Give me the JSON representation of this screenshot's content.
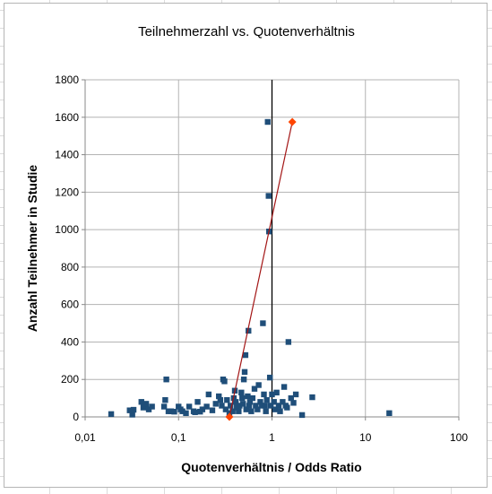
{
  "chart_data": {
    "type": "scatter",
    "title": "Teilnehmerzahl vs. Quotenverhältnis",
    "xlabel": "Quotenverhältnis / Odds Ratio",
    "ylabel": "Anzahl Teilnehmer in Studie",
    "x_scale": "log",
    "xlim": [
      0.01,
      100
    ],
    "ylim": [
      0,
      1800
    ],
    "x_ticks": [
      0.01,
      0.1,
      1,
      10,
      100
    ],
    "x_tick_labels": [
      "0,01",
      "0,1",
      "1",
      "10",
      "100"
    ],
    "y_ticks": [
      0,
      200,
      400,
      600,
      800,
      1000,
      1200,
      1400,
      1600,
      1800
    ],
    "y_tick_labels": [
      "0",
      "200",
      "400",
      "600",
      "800",
      "1000",
      "1200",
      "1400",
      "1600",
      "1800"
    ],
    "reference_line_x": 1,
    "grid": true,
    "colors": {
      "points": "#1f4e79",
      "line": "#a31515",
      "diamond": "#ff4500",
      "reference": "#000000",
      "grid": "#b3b3b3"
    },
    "series": [
      {
        "marker": "square",
        "points": [
          [
            0.019,
            15
          ],
          [
            0.03,
            35
          ],
          [
            0.032,
            12
          ],
          [
            0.033,
            38
          ],
          [
            0.04,
            80
          ],
          [
            0.042,
            50
          ],
          [
            0.045,
            70
          ],
          [
            0.048,
            40
          ],
          [
            0.052,
            55
          ],
          [
            0.07,
            55
          ],
          [
            0.072,
            90
          ],
          [
            0.074,
            200
          ],
          [
            0.078,
            30
          ],
          [
            0.083,
            30
          ],
          [
            0.09,
            28
          ],
          [
            0.1,
            55
          ],
          [
            0.105,
            40
          ],
          [
            0.11,
            30
          ],
          [
            0.12,
            20
          ],
          [
            0.13,
            55
          ],
          [
            0.145,
            30
          ],
          [
            0.15,
            25
          ],
          [
            0.16,
            80
          ],
          [
            0.17,
            28
          ],
          [
            0.18,
            40
          ],
          [
            0.2,
            55
          ],
          [
            0.21,
            120
          ],
          [
            0.23,
            35
          ],
          [
            0.25,
            70
          ],
          [
            0.27,
            110
          ],
          [
            0.28,
            90
          ],
          [
            0.29,
            60
          ],
          [
            0.3,
            200
          ],
          [
            0.31,
            190
          ],
          [
            0.32,
            40
          ],
          [
            0.33,
            90
          ],
          [
            0.35,
            20
          ],
          [
            0.36,
            60
          ],
          [
            0.38,
            30
          ],
          [
            0.39,
            100
          ],
          [
            0.4,
            140
          ],
          [
            0.41,
            80
          ],
          [
            0.42,
            50
          ],
          [
            0.44,
            30
          ],
          [
            0.45,
            60
          ],
          [
            0.47,
            130
          ],
          [
            0.48,
            100
          ],
          [
            0.49,
            70
          ],
          [
            0.5,
            200
          ],
          [
            0.51,
            240
          ],
          [
            0.52,
            330
          ],
          [
            0.53,
            40
          ],
          [
            0.55,
            110
          ],
          [
            0.56,
            460
          ],
          [
            0.57,
            60
          ],
          [
            0.58,
            80
          ],
          [
            0.6,
            30
          ],
          [
            0.62,
            100
          ],
          [
            0.65,
            150
          ],
          [
            0.67,
            60
          ],
          [
            0.7,
            40
          ],
          [
            0.72,
            170
          ],
          [
            0.75,
            80
          ],
          [
            0.78,
            60
          ],
          [
            0.8,
            500
          ],
          [
            0.82,
            120
          ],
          [
            0.84,
            60
          ],
          [
            0.86,
            30
          ],
          [
            0.88,
            90
          ],
          [
            0.9,
            1575
          ],
          [
            0.92,
            1180
          ],
          [
            0.93,
            990
          ],
          [
            0.95,
            210
          ],
          [
            0.97,
            60
          ],
          [
            1.0,
            120
          ],
          [
            1.05,
            80
          ],
          [
            1.08,
            40
          ],
          [
            1.12,
            130
          ],
          [
            1.18,
            60
          ],
          [
            1.22,
            30
          ],
          [
            1.3,
            80
          ],
          [
            1.35,
            160
          ],
          [
            1.4,
            60
          ],
          [
            1.45,
            50
          ],
          [
            1.5,
            400
          ],
          [
            1.6,
            100
          ],
          [
            1.7,
            75
          ],
          [
            1.8,
            120
          ],
          [
            2.1,
            10
          ],
          [
            2.7,
            105
          ],
          [
            18,
            20
          ]
        ]
      },
      {
        "marker": "diamond",
        "connected": true,
        "points": [
          [
            0.35,
            0
          ],
          [
            1.65,
            1575
          ]
        ]
      }
    ]
  }
}
